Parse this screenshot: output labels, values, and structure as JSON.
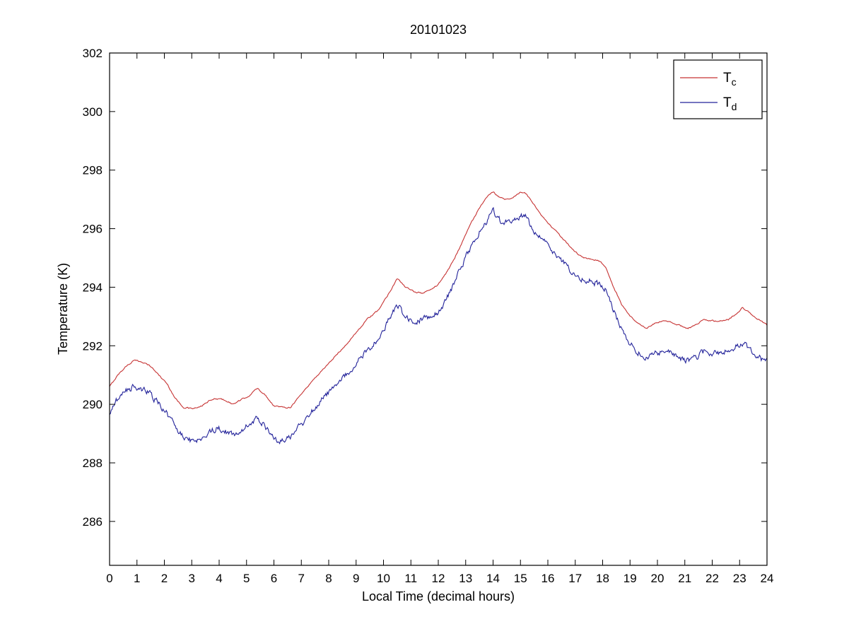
{
  "chart_data": {
    "type": "line",
    "title": "20101023",
    "xlabel": "Local Time (decimal hours)",
    "ylabel": "Temperature (K)",
    "xlim": [
      0,
      24
    ],
    "ylim": [
      284.5,
      302
    ],
    "xticks": [
      0,
      1,
      2,
      3,
      4,
      5,
      6,
      7,
      8,
      9,
      10,
      11,
      12,
      13,
      14,
      15,
      16,
      17,
      18,
      19,
      20,
      21,
      22,
      23,
      24
    ],
    "yticks": [
      286,
      288,
      290,
      292,
      294,
      296,
      298,
      300,
      302
    ],
    "grid": false,
    "legend_position": "top-right",
    "background_color": "#ffffff",
    "axis_color": "#000000",
    "series": [
      {
        "name": "Tc",
        "label_base": "T",
        "label_sub": "c",
        "color": "#c63333",
        "noise": 0.02,
        "x": [
          0,
          0.3,
          0.6,
          0.9,
          1.2,
          1.5,
          1.8,
          2.1,
          2.4,
          2.7,
          3.0,
          3.3,
          3.6,
          3.9,
          4.2,
          4.5,
          4.8,
          5.1,
          5.4,
          5.7,
          6.0,
          6.3,
          6.6,
          7.0,
          7.4,
          7.8,
          8.2,
          8.6,
          9.0,
          9.4,
          9.8,
          10.2,
          10.5,
          10.8,
          11.1,
          11.4,
          11.7,
          12.0,
          12.3,
          12.6,
          12.9,
          13.2,
          13.5,
          13.8,
          14.0,
          14.2,
          14.5,
          14.8,
          15.0,
          15.2,
          15.5,
          15.8,
          16.1,
          16.4,
          16.7,
          17.0,
          17.3,
          17.6,
          17.9,
          18.1,
          18.4,
          18.7,
          19.0,
          19.3,
          19.6,
          19.9,
          20.2,
          20.5,
          20.8,
          21.1,
          21.4,
          21.7,
          22.0,
          22.3,
          22.6,
          22.9,
          23.1,
          23.4,
          23.7,
          24.0
        ],
        "y": [
          290.6,
          291.0,
          291.3,
          291.5,
          291.45,
          291.3,
          291.0,
          290.7,
          290.2,
          289.9,
          289.85,
          289.9,
          290.1,
          290.2,
          290.15,
          290.0,
          290.15,
          290.3,
          290.55,
          290.3,
          289.95,
          289.9,
          289.9,
          290.35,
          290.8,
          291.2,
          291.6,
          292.0,
          292.45,
          292.9,
          293.2,
          293.8,
          294.3,
          294.0,
          293.85,
          293.8,
          293.9,
          294.1,
          294.5,
          295.0,
          295.6,
          296.2,
          296.7,
          297.1,
          297.25,
          297.1,
          297.0,
          297.1,
          297.25,
          297.2,
          296.8,
          296.4,
          296.1,
          295.8,
          295.5,
          295.2,
          295.0,
          294.95,
          294.9,
          294.7,
          294.0,
          293.4,
          293.0,
          292.75,
          292.6,
          292.75,
          292.85,
          292.8,
          292.7,
          292.6,
          292.7,
          292.9,
          292.85,
          292.85,
          292.9,
          293.1,
          293.3,
          293.1,
          292.9,
          292.7
        ]
      },
      {
        "name": "Td",
        "label_base": "T",
        "label_sub": "d",
        "color": "#23239a",
        "noise": 0.09,
        "x": [
          0,
          0.3,
          0.6,
          0.9,
          1.2,
          1.5,
          1.8,
          2.1,
          2.4,
          2.7,
          3.0,
          3.3,
          3.6,
          3.9,
          4.2,
          4.5,
          4.8,
          5.1,
          5.4,
          5.7,
          6.0,
          6.3,
          6.6,
          7.0,
          7.4,
          7.8,
          8.2,
          8.6,
          9.0,
          9.4,
          9.8,
          10.2,
          10.5,
          10.8,
          11.1,
          11.4,
          11.7,
          12.0,
          12.3,
          12.6,
          12.9,
          13.2,
          13.5,
          13.8,
          14.0,
          14.2,
          14.5,
          14.8,
          15.0,
          15.2,
          15.5,
          15.8,
          16.1,
          16.4,
          16.7,
          17.0,
          17.3,
          17.6,
          17.9,
          18.1,
          18.4,
          18.7,
          19.0,
          19.3,
          19.6,
          19.9,
          20.2,
          20.5,
          20.8,
          21.1,
          21.4,
          21.7,
          22.0,
          22.3,
          22.6,
          22.9,
          23.1,
          23.4,
          23.7,
          24.0
        ],
        "y": [
          289.7,
          290.2,
          290.45,
          290.6,
          290.5,
          290.35,
          290.0,
          289.7,
          289.2,
          288.9,
          288.75,
          288.8,
          289.0,
          289.2,
          289.1,
          288.95,
          289.1,
          289.3,
          289.55,
          289.2,
          288.8,
          288.75,
          288.85,
          289.3,
          289.8,
          290.2,
          290.55,
          291.0,
          291.4,
          291.85,
          292.2,
          292.9,
          293.4,
          293.0,
          292.85,
          292.9,
          293.0,
          293.1,
          293.6,
          294.2,
          294.8,
          295.4,
          295.9,
          296.3,
          296.6,
          296.3,
          296.2,
          296.3,
          296.45,
          296.4,
          295.9,
          295.6,
          295.3,
          295.0,
          294.7,
          294.4,
          294.25,
          294.2,
          294.1,
          293.9,
          293.2,
          292.5,
          292.1,
          291.8,
          291.6,
          291.75,
          291.8,
          291.75,
          291.6,
          291.5,
          291.6,
          291.8,
          291.75,
          291.8,
          291.85,
          292.0,
          292.1,
          291.9,
          291.6,
          291.45
        ]
      }
    ]
  }
}
